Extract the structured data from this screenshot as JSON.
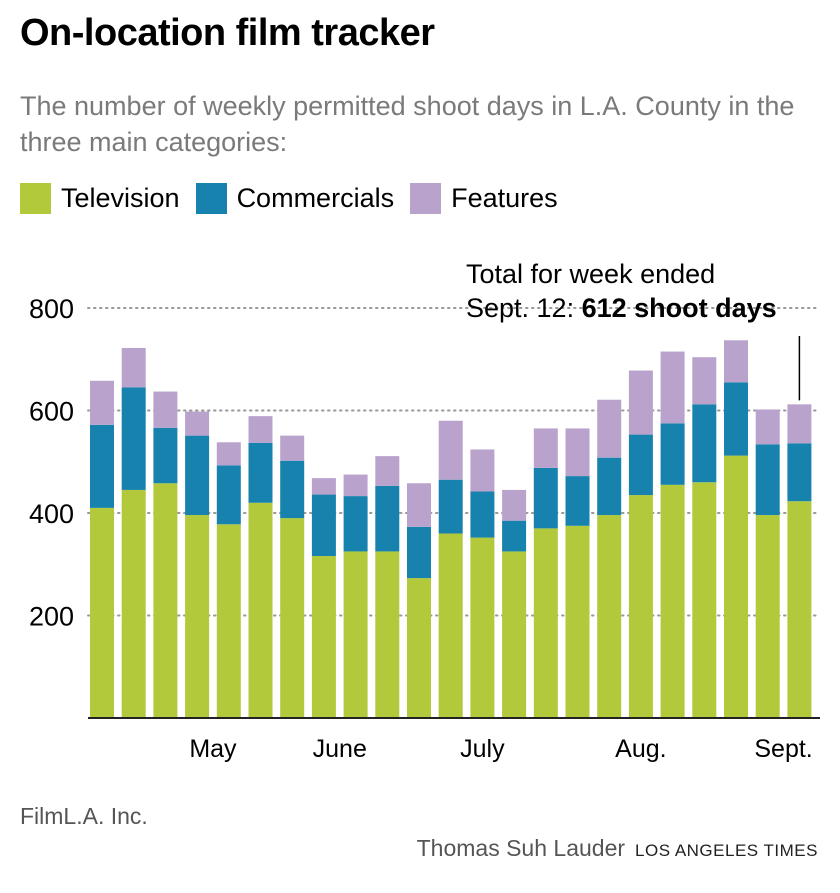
{
  "title": "On-location film tracker",
  "subtitle": "The number of weekly permitted shoot days in L.A. County in the three main categories:",
  "legend": [
    {
      "label": "Television",
      "color": "#b1c93a"
    },
    {
      "label": "Commercials",
      "color": "#1682ad"
    },
    {
      "label": "Features",
      "color": "#b9a3cc"
    }
  ],
  "annotation": {
    "prefix": "Total for week ended",
    "date": "Sept. 12: ",
    "bold": "612 shoot days"
  },
  "source": "FilmL.A. Inc.",
  "byline": {
    "author": "Thomas Suh Lauder",
    "brand": "LOS ANGELES TIMES"
  },
  "chart_data": {
    "type": "bar",
    "stacked": true,
    "title": "On-location film tracker",
    "ylim": [
      0,
      800
    ],
    "yticks": [
      200,
      400,
      600,
      800
    ],
    "grid": true,
    "month_labels": [
      {
        "label": "May",
        "index": 3.5
      },
      {
        "label": "June",
        "index": 7.5
      },
      {
        "label": "July",
        "index": 12
      },
      {
        "label": "Aug.",
        "index": 17
      },
      {
        "label": "Sept.",
        "index": 21.5
      }
    ],
    "series": [
      {
        "name": "Television",
        "color": "#b1c93a",
        "values": [
          410,
          445,
          458,
          396,
          378,
          420,
          390,
          316,
          325,
          325,
          273,
          360,
          352,
          325,
          370,
          375,
          396,
          435,
          455,
          460,
          512,
          396,
          423
        ]
      },
      {
        "name": "Commercials",
        "color": "#1682ad",
        "values": [
          162,
          200,
          108,
          155,
          115,
          117,
          112,
          120,
          108,
          128,
          100,
          105,
          90,
          60,
          118,
          97,
          112,
          118,
          120,
          152,
          143,
          138,
          113
        ]
      },
      {
        "name": "Features",
        "color": "#b9a3cc",
        "values": [
          86,
          77,
          71,
          47,
          45,
          52,
          49,
          32,
          42,
          58,
          85,
          115,
          82,
          60,
          77,
          93,
          113,
          125,
          140,
          92,
          82,
          68,
          76
        ]
      }
    ],
    "highlight": {
      "index": 22,
      "total": 612
    }
  }
}
